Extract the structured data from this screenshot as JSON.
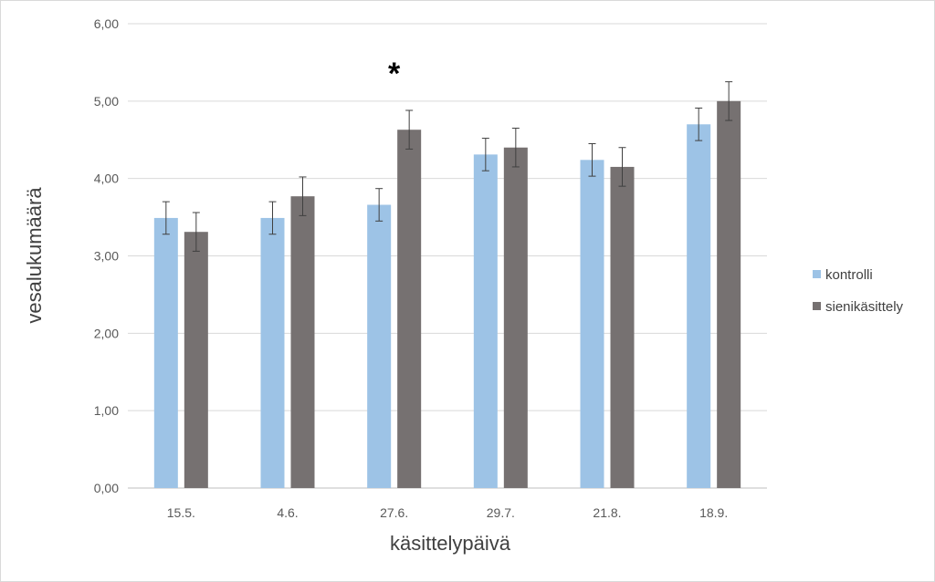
{
  "chart_data": {
    "type": "bar",
    "title": "",
    "xlabel": "käsittelypäivä",
    "ylabel": "vesalukumäärä",
    "categories": [
      "15.5.",
      "4.6.",
      "27.6.",
      "29.7.",
      "21.8.",
      "18.9."
    ],
    "ylim": [
      0,
      6
    ],
    "yticks": [
      "0,00",
      "1,00",
      "2,00",
      "3,00",
      "4,00",
      "5,00",
      "6,00"
    ],
    "grid": true,
    "legend_position": "right",
    "series": [
      {
        "name": "kontrolli",
        "color": "#9dc3e6",
        "values": [
          3.49,
          3.49,
          3.66,
          4.31,
          4.24,
          4.7
        ],
        "error": [
          0.21,
          0.21,
          0.21,
          0.21,
          0.21,
          0.21
        ]
      },
      {
        "name": "sienikäsittely",
        "color": "#767171",
        "values": [
          3.31,
          3.77,
          4.63,
          4.4,
          4.15,
          5.0
        ],
        "error": [
          0.25,
          0.25,
          0.25,
          0.25,
          0.25,
          0.25
        ]
      }
    ],
    "annotations": [
      {
        "text": "*",
        "category": "27.6."
      }
    ]
  }
}
